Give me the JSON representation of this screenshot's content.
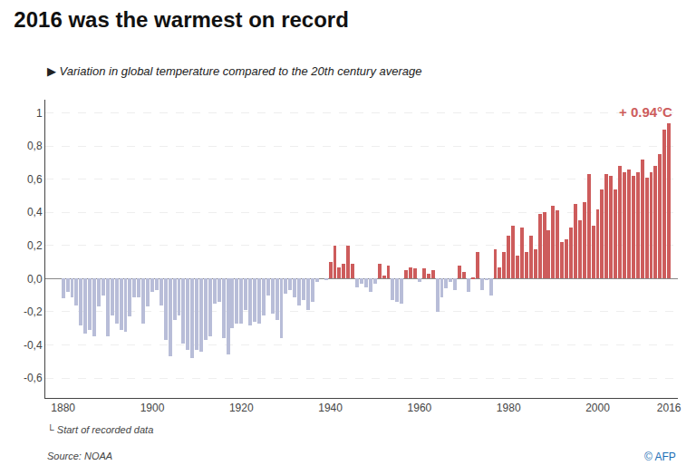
{
  "chart_data": {
    "type": "bar",
    "title": "2016 was the warmest on record",
    "subtitle": "▶ Variation in global temperature compared to the 20th century average",
    "annotations": [
      "+ 0.94°C",
      "└ Start of recorded data",
      "Source: NOAA",
      "© AFP"
    ],
    "x": [
      1880,
      1881,
      1882,
      1883,
      1884,
      1885,
      1886,
      1887,
      1888,
      1889,
      1890,
      1891,
      1892,
      1893,
      1894,
      1895,
      1896,
      1897,
      1898,
      1899,
      1900,
      1901,
      1902,
      1903,
      1904,
      1905,
      1906,
      1907,
      1908,
      1909,
      1910,
      1911,
      1912,
      1913,
      1914,
      1915,
      1916,
      1917,
      1918,
      1919,
      1920,
      1921,
      1922,
      1923,
      1924,
      1925,
      1926,
      1927,
      1928,
      1929,
      1930,
      1931,
      1932,
      1933,
      1934,
      1935,
      1936,
      1937,
      1938,
      1939,
      1940,
      1941,
      1942,
      1943,
      1944,
      1945,
      1946,
      1947,
      1948,
      1949,
      1950,
      1951,
      1952,
      1953,
      1954,
      1955,
      1956,
      1957,
      1958,
      1959,
      1960,
      1961,
      1962,
      1963,
      1964,
      1965,
      1966,
      1967,
      1968,
      1969,
      1970,
      1971,
      1972,
      1973,
      1974,
      1975,
      1976,
      1977,
      1978,
      1979,
      1980,
      1981,
      1982,
      1983,
      1984,
      1985,
      1986,
      1987,
      1988,
      1989,
      1990,
      1991,
      1992,
      1993,
      1994,
      1995,
      1996,
      1997,
      1998,
      1999,
      2000,
      2001,
      2002,
      2003,
      2004,
      2005,
      2006,
      2007,
      2008,
      2009,
      2010,
      2011,
      2012,
      2013,
      2014,
      2015,
      2016
    ],
    "values": [
      -0.12,
      -0.08,
      -0.11,
      -0.16,
      -0.28,
      -0.33,
      -0.31,
      -0.35,
      -0.17,
      -0.1,
      -0.35,
      -0.22,
      -0.27,
      -0.31,
      -0.32,
      -0.23,
      -0.11,
      -0.11,
      -0.27,
      -0.17,
      -0.08,
      -0.07,
      -0.16,
      -0.37,
      -0.47,
      -0.25,
      -0.22,
      -0.39,
      -0.43,
      -0.48,
      -0.43,
      -0.44,
      -0.37,
      -0.35,
      -0.15,
      -0.14,
      -0.36,
      -0.46,
      -0.3,
      -0.27,
      -0.27,
      -0.19,
      -0.28,
      -0.26,
      -0.27,
      -0.22,
      -0.1,
      -0.21,
      -0.25,
      -0.36,
      -0.09,
      -0.07,
      -0.11,
      -0.16,
      -0.13,
      -0.19,
      -0.14,
      -0.02,
      -0.0,
      -0.01,
      0.1,
      0.2,
      0.07,
      0.09,
      0.2,
      0.09,
      -0.05,
      -0.03,
      -0.05,
      -0.08,
      -0.03,
      0.09,
      0.02,
      0.08,
      -0.13,
      -0.14,
      -0.15,
      0.05,
      0.07,
      0.06,
      -0.02,
      0.06,
      0.03,
      0.05,
      -0.2,
      -0.11,
      -0.06,
      -0.02,
      -0.07,
      0.08,
      0.04,
      -0.08,
      0.01,
      0.16,
      -0.07,
      -0.01,
      -0.1,
      0.18,
      0.07,
      0.16,
      0.26,
      0.32,
      0.14,
      0.31,
      0.16,
      0.26,
      0.18,
      0.39,
      0.4,
      0.29,
      0.44,
      0.41,
      0.22,
      0.24,
      0.31,
      0.45,
      0.35,
      0.46,
      0.63,
      0.32,
      0.42,
      0.54,
      0.63,
      0.62,
      0.54,
      0.68,
      0.64,
      0.66,
      0.62,
      0.64,
      0.72,
      0.61,
      0.64,
      0.68,
      0.75,
      0.9,
      0.94
    ],
    "colors": [
      "#b8bdd8",
      "#b8bdd8",
      "#b8bdd8",
      "#b8bdd8",
      "#b8bdd8",
      "#b8bdd8",
      "#b8bdd8",
      "#b8bdd8",
      "#b8bdd8",
      "#b8bdd8",
      "#b8bdd8",
      "#b8bdd8",
      "#b8bdd8",
      "#b8bdd8",
      "#b8bdd8",
      "#b8bdd8",
      "#b8bdd8",
      "#b8bdd8",
      "#b8bdd8",
      "#b8bdd8",
      "#b8bdd8",
      "#b8bdd8",
      "#b8bdd8",
      "#b8bdd8",
      "#b8bdd8",
      "#b8bdd8",
      "#b8bdd8",
      "#b8bdd8",
      "#b8bdd8",
      "#b8bdd8",
      "#b8bdd8",
      "#b8bdd8",
      "#b8bdd8",
      "#b8bdd8",
      "#b8bdd8",
      "#b8bdd8",
      "#b8bdd8",
      "#b8bdd8",
      "#b8bdd8",
      "#b8bdd8",
      "#b8bdd8",
      "#b8bdd8",
      "#b8bdd8",
      "#b8bdd8",
      "#b8bdd8",
      "#b8bdd8",
      "#b8bdd8",
      "#b8bdd8",
      "#b8bdd8",
      "#b8bdd8",
      "#b8bdd8",
      "#b8bdd8",
      "#b8bdd8",
      "#b8bdd8",
      "#b8bdd8",
      "#b8bdd8",
      "#b8bdd8",
      "#b8bdd8",
      "#cd5c5c",
      "#b8bdd8",
      "#cd5c5c",
      "#cd5c5c",
      "#cd5c5c",
      "#cd5c5c",
      "#cd5c5c",
      "#cd5c5c",
      "#b8bdd8",
      "#b8bdd8",
      "#b8bdd8",
      "#b8bdd8",
      "#b8bdd8",
      "#cd5c5c",
      "#cd5c5c",
      "#cd5c5c",
      "#b8bdd8",
      "#b8bdd8",
      "#b8bdd8",
      "#cd5c5c",
      "#cd5c5c",
      "#cd5c5c",
      "#b8bdd8",
      "#cd5c5c",
      "#cd5c5c",
      "#cd5c5c",
      "#b8bdd8",
      "#b8bdd8",
      "#b8bdd8",
      "#b8bdd8",
      "#b8bdd8",
      "#cd5c5c",
      "#cd5c5c",
      "#b8bdd8",
      "#cd5c5c",
      "#cd5c5c",
      "#b8bdd8",
      "#b8bdd8",
      "#b8bdd8",
      "#cd5c5c",
      "#cd5c5c",
      "#cd5c5c",
      "#cd5c5c",
      "#cd5c5c",
      "#cd5c5c",
      "#cd5c5c",
      "#cd5c5c",
      "#cd5c5c",
      "#cd5c5c",
      "#cd5c5c",
      "#cd5c5c",
      "#cd5c5c",
      "#cd5c5c",
      "#cd5c5c",
      "#cd5c5c",
      "#cd5c5c",
      "#cd5c5c",
      "#cd5c5c",
      "#cd5c5c",
      "#cd5c5c",
      "#cd5c5c",
      "#cd5c5c",
      "#cd5c5c",
      "#cd5c5c",
      "#cd5c5c",
      "#cd5c5c",
      "#cd5c5c",
      "#cd5c5c",
      "#cd5c5c",
      "#cd5c5c",
      "#cd5c5c",
      "#cd5c5c",
      "#cd5c5c",
      "#cd5c5c",
      "#cd5c5c",
      "#cd5c5c",
      "#cd5c5c",
      "#cd5c5c",
      "#cd5c5c"
    ],
    "xlim": [
      1876,
      2018
    ],
    "xticks": [
      1880,
      1900,
      1920,
      1940,
      1960,
      1980,
      2000,
      2016
    ],
    "ylim": [
      -0.72,
      1.08
    ],
    "yticks": [
      {
        "value": -0.6,
        "label": "-0,6"
      },
      {
        "value": -0.4,
        "label": "-0,4"
      },
      {
        "value": -0.2,
        "label": "-0,2"
      },
      {
        "value": 0.0,
        "label": "0,0"
      },
      {
        "value": 0.2,
        "label": "0,2"
      },
      {
        "value": 0.4,
        "label": "0,4"
      },
      {
        "value": 0.6,
        "label": "0,6"
      },
      {
        "value": 0.8,
        "label": "0,8"
      },
      1
    ],
    "grid": true
  }
}
